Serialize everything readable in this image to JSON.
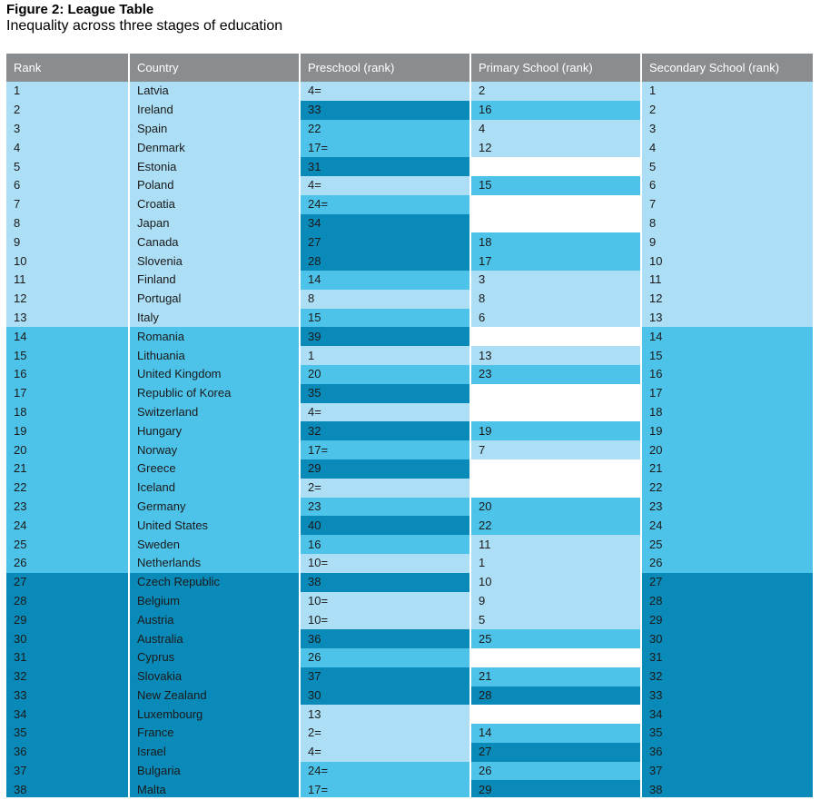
{
  "figure": {
    "title": "Figure 2: League Table",
    "subtitle": "Inequality across three stages of education"
  },
  "colors": {
    "header": "#8a8d8f",
    "tier_top_third": "#acdef5",
    "tier_middle_third": "#4ec3ea",
    "tier_bottom_third": "#0a8ab8",
    "no_data": "#ffffff"
  },
  "chart_data": {
    "type": "table",
    "title": "Figure 2: League Table",
    "subtitle": "Inequality across three stages of education",
    "columns": [
      "Rank",
      "Country",
      "Preschool (rank)",
      "Primary School (rank)",
      "Secondary School (rank)"
    ],
    "rows": [
      {
        "rank": "1",
        "country": "Latvia",
        "preschool": "4=",
        "primary": "2",
        "secondary": "1"
      },
      {
        "rank": "2",
        "country": "Ireland",
        "preschool": "33",
        "primary": "16",
        "secondary": "2"
      },
      {
        "rank": "3",
        "country": "Spain",
        "preschool": "22",
        "primary": "4",
        "secondary": "3"
      },
      {
        "rank": "4",
        "country": "Denmark",
        "preschool": "17=",
        "primary": "12",
        "secondary": "4"
      },
      {
        "rank": "5",
        "country": "Estonia",
        "preschool": "31",
        "primary": "",
        "secondary": "5"
      },
      {
        "rank": "6",
        "country": "Poland",
        "preschool": "4=",
        "primary": "15",
        "secondary": "6"
      },
      {
        "rank": "7",
        "country": "Croatia",
        "preschool": "24=",
        "primary": "",
        "secondary": "7"
      },
      {
        "rank": "8",
        "country": "Japan",
        "preschool": "34",
        "primary": "",
        "secondary": "8"
      },
      {
        "rank": "9",
        "country": "Canada",
        "preschool": "27",
        "primary": "18",
        "secondary": "9"
      },
      {
        "rank": "10",
        "country": "Slovenia",
        "preschool": "28",
        "primary": "17",
        "secondary": "10"
      },
      {
        "rank": "11",
        "country": "Finland",
        "preschool": "14",
        "primary": "3",
        "secondary": "11"
      },
      {
        "rank": "12",
        "country": "Portugal",
        "preschool": "8",
        "primary": "8",
        "secondary": "12"
      },
      {
        "rank": "13",
        "country": "Italy",
        "preschool": "15",
        "primary": "6",
        "secondary": "13"
      },
      {
        "rank": "14",
        "country": "Romania",
        "preschool": "39",
        "primary": "",
        "secondary": "14"
      },
      {
        "rank": "15",
        "country": "Lithuania",
        "preschool": "1",
        "primary": "13",
        "secondary": "15"
      },
      {
        "rank": "16",
        "country": "United Kingdom",
        "preschool": "20",
        "primary": "23",
        "secondary": "16"
      },
      {
        "rank": "17",
        "country": "Republic of Korea",
        "preschool": "35",
        "primary": "",
        "secondary": "17"
      },
      {
        "rank": "18",
        "country": "Switzerland",
        "preschool": "4=",
        "primary": "",
        "secondary": "18"
      },
      {
        "rank": "19",
        "country": "Hungary",
        "preschool": "32",
        "primary": "19",
        "secondary": "19"
      },
      {
        "rank": "20",
        "country": "Norway",
        "preschool": "17=",
        "primary": "7",
        "secondary": "20"
      },
      {
        "rank": "21",
        "country": "Greece",
        "preschool": "29",
        "primary": "",
        "secondary": "21"
      },
      {
        "rank": "22",
        "country": "Iceland",
        "preschool": "2=",
        "primary": "",
        "secondary": "22"
      },
      {
        "rank": "23",
        "country": "Germany",
        "preschool": "23",
        "primary": "20",
        "secondary": "23"
      },
      {
        "rank": "24",
        "country": "United States",
        "preschool": "40",
        "primary": "22",
        "secondary": "24"
      },
      {
        "rank": "25",
        "country": "Sweden",
        "preschool": "16",
        "primary": "11",
        "secondary": "25"
      },
      {
        "rank": "26",
        "country": "Netherlands",
        "preschool": "10=",
        "primary": "1",
        "secondary": "26"
      },
      {
        "rank": "27",
        "country": "Czech Republic",
        "preschool": "38",
        "primary": "10",
        "secondary": "27"
      },
      {
        "rank": "28",
        "country": "Belgium",
        "preschool": "10=",
        "primary": "9",
        "secondary": "28"
      },
      {
        "rank": "29",
        "country": "Austria",
        "preschool": "10=",
        "primary": "5",
        "secondary": "29"
      },
      {
        "rank": "30",
        "country": "Australia",
        "preschool": "36",
        "primary": "25",
        "secondary": "30"
      },
      {
        "rank": "31",
        "country": "Cyprus",
        "preschool": "26",
        "primary": "",
        "secondary": "31"
      },
      {
        "rank": "32",
        "country": "Slovakia",
        "preschool": "37",
        "primary": "21",
        "secondary": "32"
      },
      {
        "rank": "33",
        "country": "New Zealand",
        "preschool": "30",
        "primary": "28",
        "secondary": "33"
      },
      {
        "rank": "34",
        "country": "Luxembourg",
        "preschool": "13",
        "primary": "",
        "secondary": "34"
      },
      {
        "rank": "35",
        "country": "France",
        "preschool": "2=",
        "primary": "14",
        "secondary": "35"
      },
      {
        "rank": "36",
        "country": "Israel",
        "preschool": "4=",
        "primary": "27",
        "secondary": "36"
      },
      {
        "rank": "37",
        "country": "Bulgaria",
        "preschool": "24=",
        "primary": "26",
        "secondary": "37"
      },
      {
        "rank": "38",
        "country": "Malta",
        "preschool": "17=",
        "primary": "29",
        "secondary": "38"
      }
    ]
  }
}
